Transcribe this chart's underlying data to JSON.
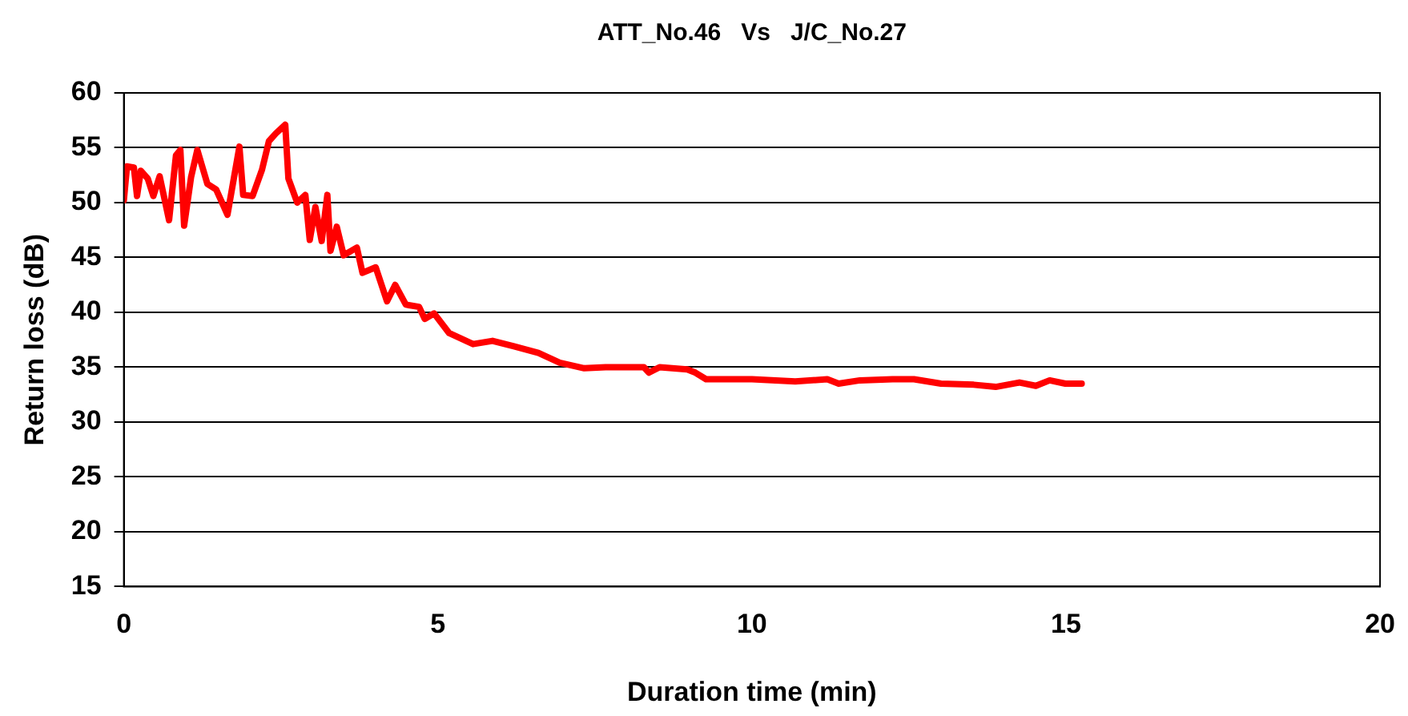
{
  "chart_data": {
    "type": "line",
    "title": "ATT_No.46   Vs   J/C_No.27",
    "xlabel": "Duration time (min)",
    "ylabel": "Return loss (dB)",
    "xlim": [
      0,
      20
    ],
    "xticks": [
      0,
      5,
      10,
      15,
      20
    ],
    "ylim": [
      15,
      60
    ],
    "yticks": [
      15,
      20,
      25,
      30,
      35,
      40,
      45,
      50,
      55,
      60
    ],
    "grid": "y",
    "legend": false,
    "marker": "none",
    "line_style": "solid",
    "series": [
      {
        "color": "#ff0000",
        "x": [
          0,
          0.05,
          0.16,
          0.21,
          0.27,
          0.38,
          0.47,
          0.57,
          0.72,
          0.83,
          0.9,
          0.96,
          1.07,
          1.17,
          1.33,
          1.47,
          1.65,
          1.84,
          1.9,
          2.05,
          2.2,
          2.31,
          2.42,
          2.57,
          2.62,
          2.76,
          2.89,
          2.96,
          3.05,
          3.15,
          3.24,
          3.29,
          3.39,
          3.5,
          3.71,
          3.8,
          4.01,
          4.19,
          4.32,
          4.49,
          4.7,
          4.79,
          4.94,
          5.18,
          5.56,
          5.87,
          6.21,
          6.6,
          6.94,
          7.33,
          7.67,
          8.28,
          8.36,
          8.53,
          8.97,
          9.1,
          9.27,
          9.65,
          10,
          10.69,
          11.2,
          11.38,
          11.72,
          12.24,
          12.58,
          13.01,
          13.53,
          13.88,
          14.26,
          14.52,
          14.74,
          14.99,
          15.25
        ],
        "values": [
          50.2,
          53.3,
          53.2,
          50.6,
          52.9,
          52.2,
          50.6,
          52.4,
          48.4,
          54.3,
          54.8,
          47.9,
          52.3,
          54.8,
          51.7,
          51.2,
          48.9,
          55.1,
          50.7,
          50.6,
          53,
          55.6,
          56.3,
          57.1,
          52.2,
          50,
          50.7,
          46.6,
          49.6,
          46.5,
          50.7,
          45.6,
          47.8,
          45.2,
          45.9,
          43.6,
          44.1,
          41,
          42.5,
          40.7,
          40.5,
          39.4,
          39.9,
          38.1,
          37.1,
          37.4,
          36.9,
          36.3,
          35.4,
          34.9,
          35,
          35,
          34.5,
          35,
          34.8,
          34.5,
          33.9,
          33.9,
          33.9,
          33.7,
          33.9,
          33.5,
          33.8,
          33.9,
          33.9,
          33.5,
          33.4,
          33.2,
          33.6,
          33.3,
          33.8,
          33.5,
          33.5
        ]
      }
    ]
  }
}
